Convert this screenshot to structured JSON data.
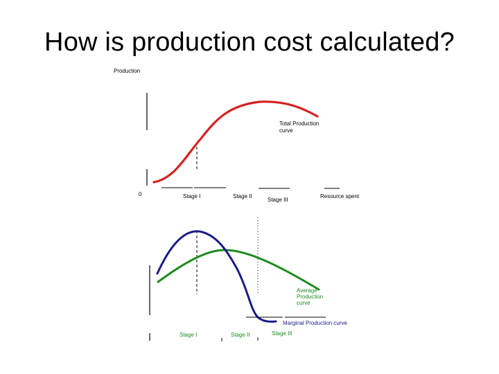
{
  "title": "How is production cost calculated?",
  "top_chart": {
    "y_axis_label": "Production",
    "origin_label": "0",
    "curve_label_line1": "Total Production",
    "curve_label_line2": "curve",
    "stage_labels": [
      "Stage I",
      "Stage II",
      "Stage III"
    ],
    "x_axis_label": "Resource spent",
    "curve_color": "#d42020"
  },
  "bottom_chart": {
    "marginal_label": "Marginal Production curve",
    "average_label_line1": "Average",
    "average_label_line2": "Production",
    "average_label_line3": "curve",
    "stage_labels": [
      "Stage I",
      "Stage II",
      "Stage III"
    ],
    "marginal_color": "#1a1a8a",
    "average_color": "#1e8a1e",
    "label_color_average": "#1e8a1e",
    "label_color_stages": "#1e8a1e",
    "label_color_marginal": "#1a1a8a"
  }
}
